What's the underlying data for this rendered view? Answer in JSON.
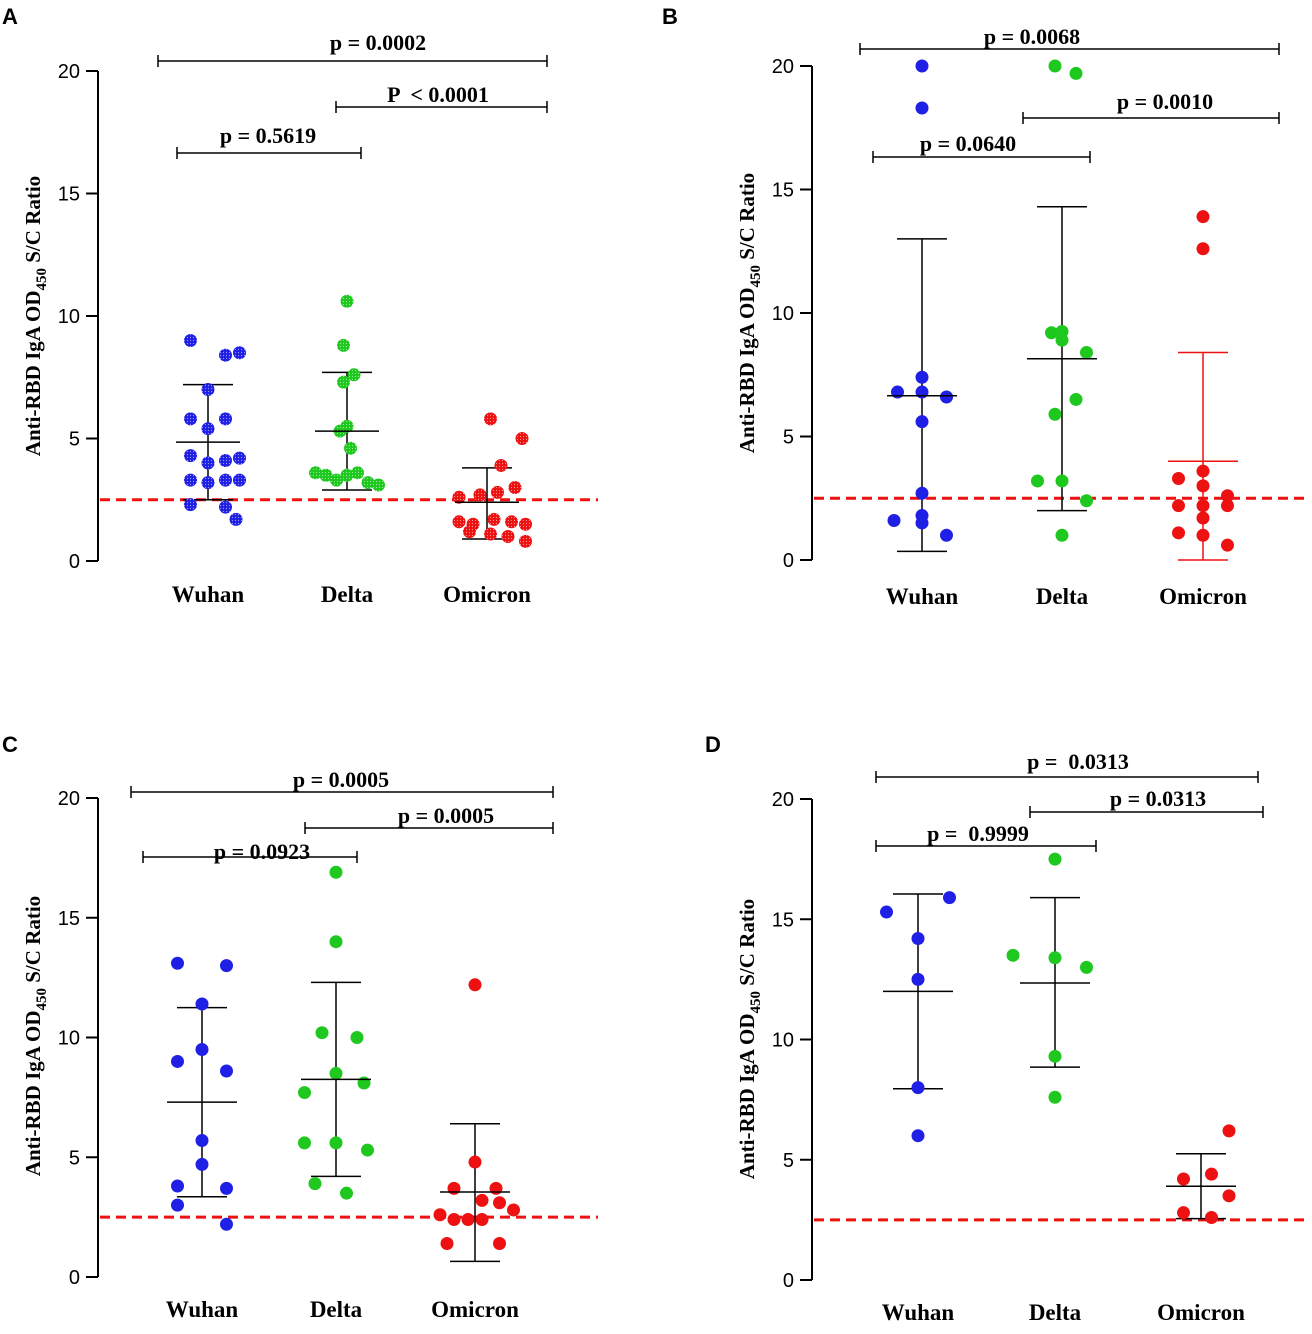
{
  "figure": {
    "panels": [
      "A",
      "B",
      "C",
      "D"
    ]
  },
  "chart_data": [
    {
      "panel": "A",
      "type": "scatter",
      "title": "",
      "ylabel": {
        "main": "Anti-RBD IgA OD",
        "sub": "450",
        "tail": " S/C Ratio"
      },
      "categories": [
        "Wuhan",
        "Delta",
        "Omicron"
      ],
      "colors": [
        "#1f1fe6",
        "#1ec81e",
        "#ee1111"
      ],
      "marker_style": "dotted",
      "ylim": [
        0,
        20
      ],
      "yticks": [
        "0",
        "5",
        "10",
        "15",
        "20"
      ],
      "cutoff": 2.5,
      "series": [
        {
          "name": "Wuhan",
          "mean": 4.85,
          "sd_low": 2.5,
          "sd_high": 7.2,
          "points": [
            [
              -0.25,
              9.0
            ],
            [
              0.25,
              8.4
            ],
            [
              0.45,
              8.5
            ],
            [
              0.0,
              7.0
            ],
            [
              -0.25,
              5.8
            ],
            [
              0.25,
              5.8
            ],
            [
              0.0,
              5.4
            ],
            [
              -0.25,
              4.3
            ],
            [
              0.0,
              4.0
            ],
            [
              0.25,
              4.1
            ],
            [
              0.45,
              4.2
            ],
            [
              -0.25,
              3.3
            ],
            [
              0.0,
              3.2
            ],
            [
              0.25,
              3.3
            ],
            [
              0.45,
              3.3
            ],
            [
              -0.25,
              2.3
            ],
            [
              0.25,
              2.2
            ],
            [
              0.4,
              1.7
            ]
          ]
        },
        {
          "name": "Delta",
          "mean": 5.3,
          "sd_low": 2.9,
          "sd_high": 7.7,
          "points": [
            [
              0.0,
              10.6
            ],
            [
              -0.05,
              8.8
            ],
            [
              0.1,
              7.6
            ],
            [
              -0.05,
              7.3
            ],
            [
              0.0,
              5.5
            ],
            [
              -0.1,
              5.3
            ],
            [
              0.05,
              4.6
            ],
            [
              -0.45,
              3.6
            ],
            [
              -0.3,
              3.5
            ],
            [
              -0.15,
              3.3
            ],
            [
              0.0,
              3.5
            ],
            [
              0.15,
              3.6
            ],
            [
              0.3,
              3.2
            ],
            [
              0.45,
              3.1
            ]
          ]
        },
        {
          "name": "Omicron",
          "mean": 2.4,
          "sd_low": 0.9,
          "sd_high": 3.8,
          "points": [
            [
              0.05,
              5.8
            ],
            [
              0.5,
              5.0
            ],
            [
              0.2,
              3.9
            ],
            [
              -0.4,
              2.6
            ],
            [
              -0.1,
              2.7
            ],
            [
              0.15,
              2.8
            ],
            [
              0.4,
              3.0
            ],
            [
              -0.4,
              1.6
            ],
            [
              -0.2,
              1.5
            ],
            [
              0.1,
              1.7
            ],
            [
              0.35,
              1.6
            ],
            [
              0.55,
              1.5
            ],
            [
              -0.25,
              1.2
            ],
            [
              0.05,
              1.1
            ],
            [
              0.3,
              1.0
            ],
            [
              0.55,
              0.8
            ]
          ]
        }
      ],
      "comparisons": [
        {
          "from": 0,
          "to": 2,
          "label": "p = 0.0002"
        },
        {
          "from": 1,
          "to": 2,
          "label": "P  < 0.0001"
        },
        {
          "from": 0,
          "to": 1,
          "label": "p = 0.5619"
        }
      ]
    },
    {
      "panel": "B",
      "type": "scatter",
      "title": "",
      "ylabel": {
        "main": "Anti-RBD IgA OD",
        "sub": "450",
        "tail": " S/C Ratio"
      },
      "categories": [
        "Wuhan",
        "Delta",
        "Omicron"
      ],
      "colors": [
        "#1f1fe6",
        "#1ec81e",
        "#ee1111"
      ],
      "marker_style": "solid",
      "ylim": [
        0,
        20
      ],
      "yticks": [
        "0",
        "5",
        "10",
        "15",
        "20"
      ],
      "cutoff": 2.5,
      "series": [
        {
          "name": "Wuhan",
          "mean": 6.65,
          "sd_low": 0.35,
          "sd_high": 13.0,
          "points": [
            [
              0.0,
              20.0
            ],
            [
              0.0,
              18.3
            ],
            [
              0.0,
              7.4
            ],
            [
              -0.35,
              6.8
            ],
            [
              0.0,
              6.8
            ],
            [
              0.35,
              6.6
            ],
            [
              0.0,
              5.6
            ],
            [
              0.0,
              2.7
            ],
            [
              -0.4,
              1.6
            ],
            [
              0.0,
              1.8
            ],
            [
              0.0,
              1.5
            ],
            [
              0.35,
              1.0
            ]
          ]
        },
        {
          "name": "Delta",
          "mean": 8.15,
          "sd_low": 2.0,
          "sd_high": 14.3,
          "points": [
            [
              -0.1,
              20.0
            ],
            [
              0.2,
              19.7
            ],
            [
              -0.15,
              9.2
            ],
            [
              0.0,
              9.25
            ],
            [
              0.0,
              8.9
            ],
            [
              0.35,
              8.4
            ],
            [
              0.2,
              6.5
            ],
            [
              -0.1,
              5.9
            ],
            [
              -0.35,
              3.2
            ],
            [
              0.0,
              3.2
            ],
            [
              0.35,
              2.4
            ],
            [
              0.0,
              1.0
            ]
          ]
        },
        {
          "name": "Omicron",
          "mean": 4.0,
          "sd_low": 0.0,
          "sd_high": 8.4,
          "points": [
            [
              0.0,
              13.9
            ],
            [
              0.0,
              12.6
            ],
            [
              0.0,
              3.6
            ],
            [
              -0.35,
              3.3
            ],
            [
              0.0,
              3.0
            ],
            [
              0.35,
              2.6
            ],
            [
              0.35,
              2.2
            ],
            [
              0.0,
              2.2
            ],
            [
              -0.35,
              2.2
            ],
            [
              0.0,
              1.7
            ],
            [
              -0.35,
              1.1
            ],
            [
              0.0,
              1.0
            ],
            [
              0.35,
              0.6
            ]
          ]
        }
      ],
      "comparisons": [
        {
          "from": 0,
          "to": 2,
          "label": "p = 0.0068"
        },
        {
          "from": 1,
          "to": 2,
          "label": "p = 0.0010"
        },
        {
          "from": 0,
          "to": 1,
          "label": "p = 0.0640"
        }
      ]
    },
    {
      "panel": "C",
      "type": "scatter",
      "title": "",
      "ylabel": {
        "main": "Anti-RBD IgA OD",
        "sub": "450",
        "tail": " S/C Ratio"
      },
      "categories": [
        "Wuhan",
        "Delta",
        "Omicron"
      ],
      "colors": [
        "#1f1fe6",
        "#1ec81e",
        "#ee1111"
      ],
      "marker_style": "solid",
      "ylim": [
        0,
        20
      ],
      "yticks": [
        "0",
        "5",
        "10",
        "15",
        "20"
      ],
      "cutoff": 2.5,
      "series": [
        {
          "name": "Wuhan",
          "mean": 7.3,
          "sd_low": 3.35,
          "sd_high": 11.25,
          "points": [
            [
              -0.35,
              13.1
            ],
            [
              0.35,
              13.0
            ],
            [
              0.0,
              11.4
            ],
            [
              -0.35,
              9.0
            ],
            [
              0.0,
              9.5
            ],
            [
              0.35,
              8.6
            ],
            [
              0.0,
              5.7
            ],
            [
              0.0,
              4.7
            ],
            [
              -0.35,
              3.8
            ],
            [
              0.35,
              3.7
            ],
            [
              -0.35,
              3.0
            ],
            [
              0.35,
              2.2
            ]
          ]
        },
        {
          "name": "Delta",
          "mean": 8.25,
          "sd_low": 4.2,
          "sd_high": 12.3,
          "points": [
            [
              0.0,
              16.9
            ],
            [
              0.0,
              14.0
            ],
            [
              -0.2,
              10.2
            ],
            [
              0.3,
              10.0
            ],
            [
              0.0,
              8.5
            ],
            [
              0.4,
              8.1
            ],
            [
              -0.45,
              7.7
            ],
            [
              -0.45,
              5.6
            ],
            [
              0.0,
              5.6
            ],
            [
              0.45,
              5.3
            ],
            [
              -0.3,
              3.9
            ],
            [
              0.15,
              3.5
            ]
          ]
        },
        {
          "name": "Omicron",
          "mean": 3.55,
          "sd_low": 0.65,
          "sd_high": 6.4,
          "points": [
            [
              0.0,
              12.2
            ],
            [
              0.0,
              4.8
            ],
            [
              -0.3,
              3.7
            ],
            [
              0.3,
              3.7
            ],
            [
              0.1,
              3.2
            ],
            [
              0.35,
              3.1
            ],
            [
              0.55,
              2.8
            ],
            [
              -0.5,
              2.6
            ],
            [
              -0.3,
              2.4
            ],
            [
              -0.1,
              2.4
            ],
            [
              0.1,
              2.4
            ],
            [
              -0.4,
              1.4
            ],
            [
              0.35,
              1.4
            ]
          ]
        }
      ],
      "comparisons": [
        {
          "from": 0,
          "to": 2,
          "label": "p = 0.0005"
        },
        {
          "from": 1,
          "to": 2,
          "label": "p = 0.0005"
        },
        {
          "from": 0,
          "to": 1,
          "label": "p = 0.0923"
        }
      ]
    },
    {
      "panel": "D",
      "type": "scatter",
      "title": "",
      "ylabel": {
        "main": "Anti-RBD IgA OD",
        "sub": "450",
        "tail": " S/C Ratio"
      },
      "categories": [
        "Wuhan",
        "Delta",
        "Omicron"
      ],
      "colors": [
        "#1f1fe6",
        "#1ec81e",
        "#ee1111"
      ],
      "marker_style": "solid",
      "ylim": [
        0,
        20
      ],
      "yticks": [
        "0",
        "5",
        "10",
        "15",
        "20"
      ],
      "cutoff": 2.5,
      "series": [
        {
          "name": "Wuhan",
          "mean": 12.0,
          "sd_low": 7.95,
          "sd_high": 16.05,
          "points": [
            [
              -0.45,
              15.3
            ],
            [
              0.45,
              15.9
            ],
            [
              0.0,
              14.2
            ],
            [
              0.0,
              12.5
            ],
            [
              0.0,
              8.0
            ],
            [
              0.0,
              6.0
            ]
          ]
        },
        {
          "name": "Delta",
          "mean": 12.35,
          "sd_low": 8.85,
          "sd_high": 15.9,
          "points": [
            [
              0.0,
              17.5
            ],
            [
              -0.6,
              13.5
            ],
            [
              0.0,
              13.4
            ],
            [
              0.45,
              13.0
            ],
            [
              0.0,
              9.3
            ],
            [
              0.0,
              7.6
            ]
          ]
        },
        {
          "name": "Omicron",
          "mean": 3.9,
          "sd_low": 2.55,
          "sd_high": 5.25,
          "points": [
            [
              0.4,
              6.2
            ],
            [
              0.15,
              4.4
            ],
            [
              -0.25,
              4.2
            ],
            [
              0.4,
              3.5
            ],
            [
              -0.25,
              2.8
            ],
            [
              0.15,
              2.6
            ]
          ]
        }
      ],
      "comparisons": [
        {
          "from": 0,
          "to": 2,
          "label": "p =  0.0313"
        },
        {
          "from": 1,
          "to": 2,
          "label": "p = 0.0313"
        },
        {
          "from": 0,
          "to": 1,
          "label": "p =  0.9999"
        }
      ]
    }
  ]
}
